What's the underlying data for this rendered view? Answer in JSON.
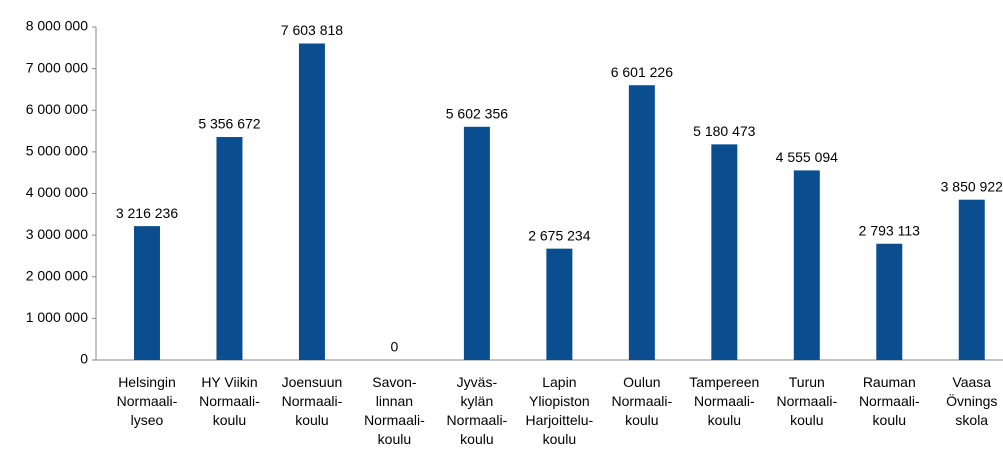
{
  "chart_data": {
    "type": "bar",
    "categories": [
      [
        "Helsingin",
        "Normaali-",
        "lyseo"
      ],
      [
        "HY Viikin",
        "Normaali-",
        "koulu"
      ],
      [
        "Joensuun",
        "Normaali-",
        "koulu"
      ],
      [
        "Savon-",
        "linnan",
        "Normaali-",
        "koulu"
      ],
      [
        "Jyväs-",
        "kylän",
        "Normaali-",
        "koulu"
      ],
      [
        "Lapin",
        "Yliopiston",
        "Harjoittelu-",
        "koulu"
      ],
      [
        "Oulun",
        "Normaali-",
        "koulu"
      ],
      [
        "Tampereen",
        "Normaali-",
        "koulu"
      ],
      [
        "Turun",
        "Normaali-",
        "koulu"
      ],
      [
        "Rauman",
        "Normaali-",
        "koulu"
      ],
      [
        "Vaasa",
        "Övnings",
        "skola"
      ]
    ],
    "values": [
      3216236,
      5356672,
      7603818,
      0,
      5602356,
      2675234,
      6601226,
      5180473,
      4555094,
      2793113,
      3850922
    ],
    "value_labels": [
      "3 216 236",
      "5 356 672",
      "7 603 818",
      "0",
      "5 602 356",
      "2 675 234",
      "6 601 226",
      "5 180 473",
      "4 555 094",
      "2 793 113",
      "3 850 922"
    ],
    "color": "#0b4e8f",
    "ylim": [
      0,
      8000000
    ],
    "yticks": [
      0,
      {
        "value": 1000000,
        "label": "1 000 000"
      },
      {
        "value": 2000000,
        "label": "2 000 000"
      },
      {
        "value": 3000000,
        "label": "3 000 000"
      },
      {
        "value": 4000000,
        "label": "4 000 000"
      },
      {
        "value": 5000000,
        "label": "5 000 000"
      },
      {
        "value": 6000000,
        "label": "6 000 000"
      },
      {
        "value": 7000000,
        "label": "7 000 000"
      },
      {
        "value": 8000000,
        "label": "8 000 000"
      }
    ],
    "grid": false
  }
}
